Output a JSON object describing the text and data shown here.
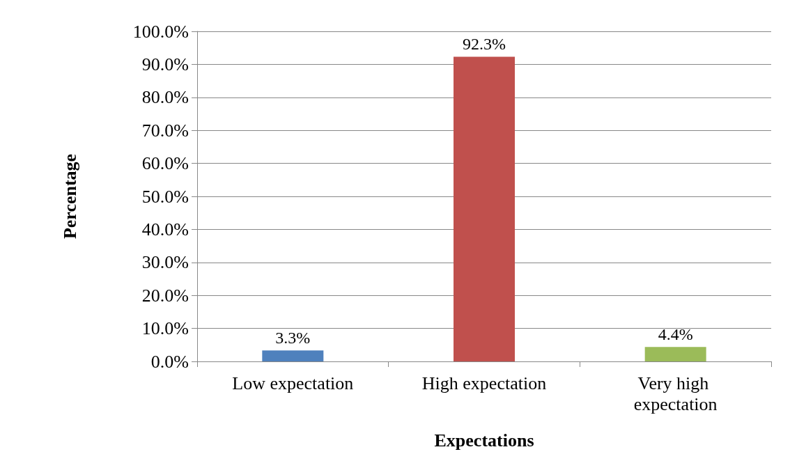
{
  "chart_data": {
    "type": "bar",
    "xlabel": "Expectations",
    "ylabel": "Percentage",
    "categories": [
      "Low expectation",
      "High expectation",
      "Very high expectation"
    ],
    "values": [
      3.3,
      92.3,
      4.4
    ],
    "colors": [
      "#4f81bd",
      "#c0504d",
      "#9bbb59"
    ],
    "value_labels": [
      "3.3%",
      "92.3%",
      "4.4%"
    ],
    "ylim": [
      0,
      100
    ],
    "yticks": [
      {
        "value": 0,
        "label": "0.0%"
      },
      {
        "value": 10,
        "label": "10.0%"
      },
      {
        "value": 20,
        "label": "20.0%"
      },
      {
        "value": 30,
        "label": "30.0%"
      },
      {
        "value": 40,
        "label": "40.0%"
      },
      {
        "value": 50,
        "label": "50.0%"
      },
      {
        "value": 60,
        "label": "60.0%"
      },
      {
        "value": 70,
        "label": "70.0%"
      },
      {
        "value": 80,
        "label": "80.0%"
      },
      {
        "value": 90,
        "label": "90.0%"
      },
      {
        "value": 100,
        "label": "100.0%"
      }
    ],
    "grid": "y"
  }
}
